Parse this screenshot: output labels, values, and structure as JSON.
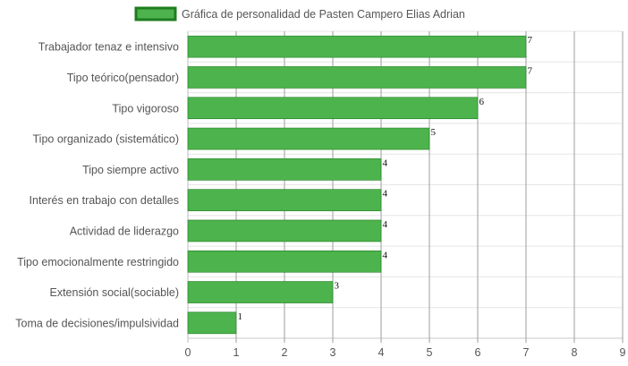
{
  "chart_data": {
    "type": "bar",
    "orientation": "horizontal",
    "categories": [
      "Trabajador tenaz e intensivo",
      "Tipo teórico(pensador)",
      "Tipo vigoroso",
      "Tipo organizado (sistemático)",
      "Tipo siempre activo",
      "Interés en trabajo con detalles",
      "Actividad de liderazgo",
      "Tipo emocionalmente restringido",
      "Extensión social(sociable)",
      "Toma de decisiones/impulsividad"
    ],
    "series": [
      {
        "name": "Gráfica de personalidad de Pasten Campero Elias Adrian",
        "values": [
          7,
          7,
          6,
          5,
          4,
          4,
          4,
          4,
          3,
          1
        ],
        "color": "#4db34d",
        "border_color": "#1e7d1e"
      }
    ],
    "xlim": [
      0,
      9
    ],
    "xticks": [
      "0",
      "1",
      "2",
      "3",
      "4",
      "5",
      "6",
      "7",
      "8",
      "9"
    ],
    "grid": true,
    "data_labels": true,
    "legend_position": "top"
  }
}
